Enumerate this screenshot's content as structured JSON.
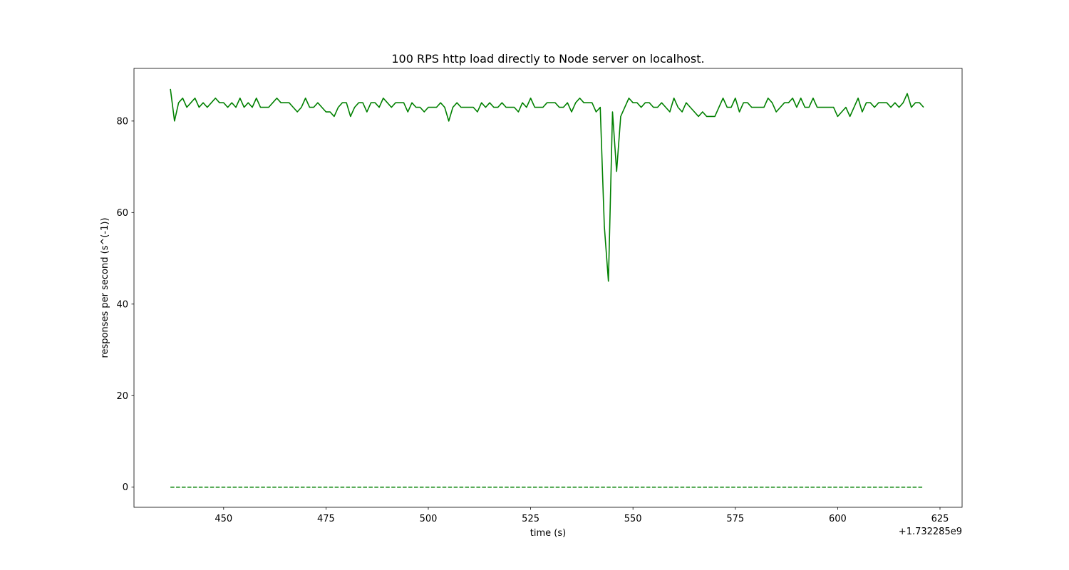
{
  "chart_data": {
    "type": "line",
    "title": "100 RPS http load directly to Node server on localhost.",
    "xlabel": "time (s)",
    "ylabel": "responses per second (s^(-1))",
    "x_offset_label": "+1.732285e9",
    "x": [
      437,
      438,
      439,
      440,
      441,
      442,
      443,
      444,
      445,
      446,
      447,
      448,
      449,
      450,
      451,
      452,
      453,
      454,
      455,
      456,
      457,
      458,
      459,
      460,
      461,
      462,
      463,
      464,
      465,
      466,
      467,
      468,
      469,
      470,
      471,
      472,
      473,
      474,
      475,
      476,
      477,
      478,
      479,
      480,
      481,
      482,
      483,
      484,
      485,
      486,
      487,
      488,
      489,
      490,
      491,
      492,
      493,
      494,
      495,
      496,
      497,
      498,
      499,
      500,
      501,
      502,
      503,
      504,
      505,
      506,
      507,
      508,
      509,
      510,
      511,
      512,
      513,
      514,
      515,
      516,
      517,
      518,
      519,
      520,
      521,
      522,
      523,
      524,
      525,
      526,
      527,
      528,
      529,
      530,
      531,
      532,
      533,
      534,
      535,
      536,
      537,
      538,
      539,
      540,
      541,
      542,
      543,
      544,
      545,
      546,
      547,
      548,
      549,
      550,
      551,
      552,
      553,
      554,
      555,
      556,
      557,
      558,
      559,
      560,
      561,
      562,
      563,
      564,
      565,
      566,
      567,
      568,
      569,
      570,
      571,
      572,
      573,
      574,
      575,
      576,
      577,
      578,
      579,
      580,
      581,
      582,
      583,
      584,
      585,
      586,
      587,
      588,
      589,
      590,
      591,
      592,
      593,
      594,
      595,
      596,
      597,
      598,
      599,
      600,
      601,
      602,
      603,
      604,
      605,
      606,
      607,
      608,
      609,
      610,
      611,
      612,
      613,
      614,
      615,
      616,
      617,
      618,
      619,
      620,
      621
    ],
    "series": [
      {
        "color": "#008000",
        "linestyle": "solid",
        "values": [
          87,
          80,
          84,
          85,
          83,
          84,
          85,
          83,
          84,
          83,
          84,
          85,
          84,
          84,
          83,
          84,
          83,
          85,
          83,
          84,
          83,
          85,
          83,
          83,
          83,
          84,
          85,
          84,
          84,
          84,
          83,
          82,
          83,
          85,
          83,
          83,
          84,
          83,
          82,
          82,
          81,
          83,
          84,
          84,
          81,
          83,
          84,
          84,
          82,
          84,
          84,
          83,
          85,
          84,
          83,
          84,
          84,
          84,
          82,
          84,
          83,
          83,
          82,
          83,
          83,
          83,
          84,
          83,
          80,
          83,
          84,
          83,
          83,
          83,
          83,
          82,
          84,
          83,
          84,
          83,
          83,
          84,
          83,
          83,
          83,
          82,
          84,
          83,
          85,
          83,
          83,
          83,
          84,
          84,
          84,
          83,
          83,
          84,
          82,
          84,
          85,
          84,
          84,
          84,
          82,
          83,
          57,
          45,
          82,
          69,
          81,
          83,
          85,
          84,
          84,
          83,
          84,
          84,
          83,
          83,
          84,
          83,
          82,
          85,
          83,
          82,
          84,
          83,
          82,
          81,
          82,
          81,
          81,
          81,
          83,
          85,
          83,
          83,
          85,
          82,
          84,
          84,
          83,
          83,
          83,
          83,
          85,
          84,
          82,
          83,
          84,
          84,
          85,
          83,
          85,
          83,
          83,
          85,
          83,
          83,
          83,
          83,
          83,
          81,
          82,
          83,
          81,
          83,
          85,
          82,
          84,
          84,
          83,
          84,
          84,
          84,
          83,
          84,
          83,
          84,
          86,
          83,
          84,
          84,
          83
        ]
      },
      {
        "color": "#008000",
        "linestyle": "dashed",
        "values": [
          0,
          0,
          0,
          0,
          0,
          0,
          0,
          0,
          0,
          0,
          0,
          0,
          0,
          0,
          0,
          0,
          0,
          0,
          0,
          0,
          0,
          0,
          0,
          0,
          0,
          0,
          0,
          0,
          0,
          0,
          0,
          0,
          0,
          0,
          0,
          0,
          0,
          0,
          0,
          0,
          0,
          0,
          0,
          0,
          0,
          0,
          0,
          0,
          0,
          0,
          0,
          0,
          0,
          0,
          0,
          0,
          0,
          0,
          0,
          0,
          0,
          0,
          0,
          0,
          0,
          0,
          0,
          0,
          0,
          0,
          0,
          0,
          0,
          0,
          0,
          0,
          0,
          0,
          0,
          0,
          0,
          0,
          0,
          0,
          0,
          0,
          0,
          0,
          0,
          0,
          0,
          0,
          0,
          0,
          0,
          0,
          0,
          0,
          0,
          0,
          0,
          0,
          0,
          0,
          0,
          0,
          0,
          0,
          0,
          0,
          0,
          0,
          0,
          0,
          0,
          0,
          0,
          0,
          0,
          0,
          0,
          0,
          0,
          0,
          0,
          0,
          0,
          0,
          0,
          0,
          0,
          0,
          0,
          0,
          0,
          0,
          0,
          0,
          0,
          0,
          0,
          0,
          0,
          0,
          0,
          0,
          0,
          0,
          0,
          0,
          0,
          0,
          0,
          0,
          0,
          0,
          0,
          0,
          0,
          0,
          0,
          0,
          0,
          0,
          0,
          0,
          0,
          0,
          0,
          0,
          0,
          0,
          0,
          0,
          0,
          0,
          0,
          0,
          0,
          0,
          0,
          0,
          0,
          0,
          0
        ]
      }
    ],
    "xlim": [
      428.1,
      630.4
    ],
    "xticks": [
      450,
      475,
      500,
      525,
      550,
      575,
      600,
      625
    ],
    "ylim": [
      -4.4,
      91.5
    ],
    "yticks": [
      0,
      20,
      40,
      60,
      80
    ],
    "grid": false
  }
}
